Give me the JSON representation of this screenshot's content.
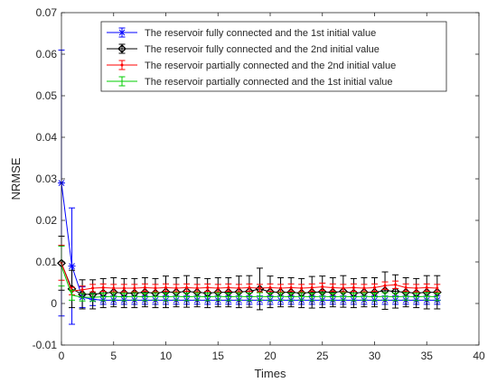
{
  "chart_data": {
    "type": "line",
    "xlabel": "Times",
    "ylabel": "NRMSE",
    "xlim": [
      0,
      40
    ],
    "ylim": [
      -0.01,
      0.07
    ],
    "xticks": [
      "0",
      "5",
      "10",
      "15",
      "20",
      "25",
      "30",
      "35",
      "40"
    ],
    "yticks": [
      "-0.01",
      "0",
      "0.01",
      "0.02",
      "0.03",
      "0.04",
      "0.05",
      "0.06",
      "0.07"
    ],
    "grid": false,
    "legend_position": "top",
    "series": [
      {
        "name": "The reservoir fully connected and the 1st initial value",
        "color": "#0000ff",
        "marker": "asterisk",
        "x": [
          0,
          1,
          2,
          3,
          4,
          5,
          6,
          7,
          8,
          9,
          10,
          11,
          12,
          13,
          14,
          15,
          16,
          17,
          18,
          19,
          20,
          21,
          22,
          23,
          24,
          25,
          26,
          27,
          28,
          29,
          30,
          31,
          32,
          33,
          34,
          35,
          36
        ],
        "y": [
          0.029,
          0.009,
          0.0015,
          0.001,
          0.0008,
          0.0008,
          0.0008,
          0.0008,
          0.0008,
          0.0008,
          0.0008,
          0.0008,
          0.0008,
          0.0008,
          0.0008,
          0.0008,
          0.0008,
          0.0008,
          0.0008,
          0.0008,
          0.0008,
          0.0008,
          0.0008,
          0.0008,
          0.0008,
          0.0008,
          0.0008,
          0.0008,
          0.0008,
          0.0008,
          0.0008,
          0.0008,
          0.0008,
          0.0008,
          0.0008,
          0.0008,
          0.0008
        ],
        "err": [
          0.032,
          0.014,
          0.0025,
          0.0015,
          0.001,
          0.001,
          0.001,
          0.001,
          0.001,
          0.001,
          0.001,
          0.001,
          0.001,
          0.001,
          0.001,
          0.001,
          0.001,
          0.001,
          0.001,
          0.001,
          0.001,
          0.001,
          0.001,
          0.001,
          0.001,
          0.001,
          0.001,
          0.001,
          0.001,
          0.001,
          0.001,
          0.001,
          0.001,
          0.001,
          0.001,
          0.001,
          0.001
        ]
      },
      {
        "name": "The reservoir fully connected and the 2nd initial value",
        "color": "#000000",
        "marker": "diamond",
        "x": [
          0,
          1,
          2,
          3,
          4,
          5,
          6,
          7,
          8,
          9,
          10,
          11,
          12,
          13,
          14,
          15,
          16,
          17,
          18,
          19,
          20,
          21,
          22,
          23,
          24,
          25,
          26,
          27,
          28,
          29,
          30,
          31,
          32,
          33,
          34,
          35,
          36
        ],
        "y": [
          0.0097,
          0.0035,
          0.0022,
          0.0022,
          0.0025,
          0.0027,
          0.0025,
          0.0025,
          0.0027,
          0.0025,
          0.0028,
          0.0027,
          0.0029,
          0.0027,
          0.0025,
          0.0027,
          0.0027,
          0.0028,
          0.0029,
          0.0035,
          0.0028,
          0.0027,
          0.0027,
          0.0025,
          0.0027,
          0.0028,
          0.0027,
          0.0029,
          0.0025,
          0.0027,
          0.0027,
          0.0031,
          0.0029,
          0.0027,
          0.0025,
          0.0027,
          0.0027
        ],
        "err": [
          0.0065,
          0.0045,
          0.0035,
          0.0035,
          0.0035,
          0.0035,
          0.0035,
          0.0035,
          0.0035,
          0.0035,
          0.0038,
          0.0035,
          0.0038,
          0.0035,
          0.0035,
          0.0035,
          0.0035,
          0.0038,
          0.0038,
          0.005,
          0.0038,
          0.0035,
          0.0035,
          0.0035,
          0.0038,
          0.0038,
          0.0035,
          0.0038,
          0.0035,
          0.0035,
          0.0035,
          0.0045,
          0.004,
          0.0035,
          0.0035,
          0.004,
          0.004
        ]
      },
      {
        "name": "The reservoir partially connected and the 2nd initial value",
        "color": "#ff0000",
        "marker": "point",
        "x": [
          0,
          1,
          2,
          3,
          4,
          5,
          6,
          7,
          8,
          9,
          10,
          11,
          12,
          13,
          14,
          15,
          16,
          17,
          18,
          19,
          20,
          21,
          22,
          23,
          24,
          25,
          26,
          27,
          28,
          29,
          30,
          31,
          32,
          33,
          34,
          35,
          36
        ],
        "y": [
          0.0098,
          0.003,
          0.0033,
          0.0037,
          0.0038,
          0.0037,
          0.0037,
          0.0037,
          0.0038,
          0.0037,
          0.0038,
          0.0037,
          0.0038,
          0.0037,
          0.0038,
          0.0037,
          0.0038,
          0.0037,
          0.0038,
          0.0037,
          0.0038,
          0.0037,
          0.0038,
          0.0037,
          0.0038,
          0.004,
          0.0038,
          0.0037,
          0.0038,
          0.0037,
          0.0038,
          0.0043,
          0.0045,
          0.0038,
          0.0037,
          0.0038,
          0.0037
        ],
        "err": [
          0.0042,
          0.0009,
          0.0009,
          0.0009,
          0.0009,
          0.0009,
          0.0009,
          0.0009,
          0.0009,
          0.0009,
          0.0009,
          0.0009,
          0.0009,
          0.0009,
          0.0009,
          0.0009,
          0.0009,
          0.0009,
          0.0009,
          0.0009,
          0.0009,
          0.0009,
          0.0009,
          0.0009,
          0.0009,
          0.0009,
          0.0009,
          0.0009,
          0.0009,
          0.0009,
          0.0009,
          0.0009,
          0.0009,
          0.0009,
          0.0009,
          0.0009,
          0.0009
        ]
      },
      {
        "name": "The reservoir partially connected and the 1st initial value",
        "color": "#00cc00",
        "marker": "none",
        "x": [
          0,
          1,
          2,
          3,
          4,
          5,
          6,
          7,
          8,
          9,
          10,
          11,
          12,
          13,
          14,
          15,
          16,
          17,
          18,
          19,
          20,
          21,
          22,
          23,
          24,
          25,
          26,
          27,
          28,
          29,
          30,
          31,
          32,
          33,
          34,
          35,
          36
        ],
        "y": [
          0.009,
          0.002,
          0.0015,
          0.0015,
          0.0016,
          0.0017,
          0.0016,
          0.0017,
          0.0016,
          0.0017,
          0.0016,
          0.0017,
          0.0016,
          0.0017,
          0.0016,
          0.0017,
          0.0016,
          0.0017,
          0.0016,
          0.0017,
          0.0016,
          0.0017,
          0.0016,
          0.0017,
          0.0016,
          0.0017,
          0.0016,
          0.0017,
          0.0016,
          0.0017,
          0.0016,
          0.0017,
          0.0016,
          0.0017,
          0.0016,
          0.0017,
          0.0016
        ],
        "err": [
          0.0048,
          0.0012,
          0.0009,
          0.0009,
          0.0009,
          0.0009,
          0.0009,
          0.0009,
          0.0009,
          0.0009,
          0.0009,
          0.0009,
          0.0009,
          0.0009,
          0.0009,
          0.0009,
          0.0009,
          0.0009,
          0.0009,
          0.0009,
          0.0009,
          0.0009,
          0.0009,
          0.0009,
          0.0009,
          0.0009,
          0.0009,
          0.0009,
          0.0009,
          0.0009,
          0.0009,
          0.0009,
          0.0009,
          0.0009,
          0.0009,
          0.0009,
          0.0009
        ]
      }
    ]
  }
}
